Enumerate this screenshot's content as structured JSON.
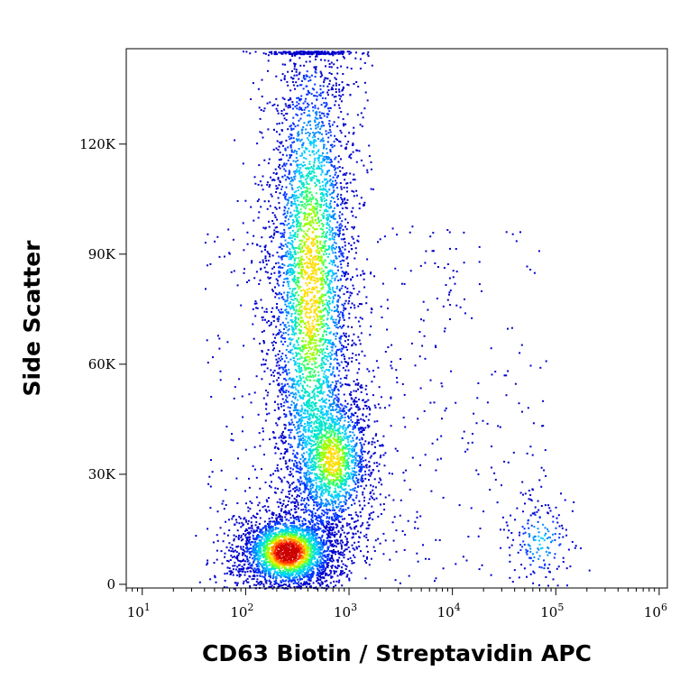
{
  "chart_data": {
    "type": "scatter",
    "plot_style": "density-colored flow cytometry dot plot",
    "xlabel": "CD63 Biotin / Streptavidin APC",
    "ylabel": "Side Scatter",
    "x_scale": "log",
    "xlim": [
      7,
      1200000
    ],
    "ylim": [
      -1000,
      146000
    ],
    "x_ticks": [
      {
        "value": 10,
        "base": "10",
        "exp": "1"
      },
      {
        "value": 100,
        "base": "10",
        "exp": "2"
      },
      {
        "value": 1000,
        "base": "10",
        "exp": "3"
      },
      {
        "value": 10000,
        "base": "10",
        "exp": "4"
      },
      {
        "value": 100000,
        "base": "10",
        "exp": "5"
      },
      {
        "value": 1000000,
        "base": "10",
        "exp": "6"
      }
    ],
    "y_ticks": [
      {
        "value": 0,
        "label": "0"
      },
      {
        "value": 30000,
        "label": "30K"
      },
      {
        "value": 60000,
        "label": "60K"
      },
      {
        "value": 90000,
        "label": "90K"
      },
      {
        "value": 120000,
        "label": "120K"
      }
    ],
    "density_colors": [
      "#0000cc",
      "#0033ff",
      "#0088ff",
      "#00ccff",
      "#00e5cc",
      "#33ff66",
      "#99ff00",
      "#ffdd00",
      "#ff8800",
      "#ff2200",
      "#cc0000"
    ],
    "populations": [
      {
        "x_center": 250,
        "y_center": 9000,
        "x_spread_log": 0.16,
        "y_spread": 3500,
        "peak_density": 1.0
      },
      {
        "x_center": 700,
        "y_center": 34000,
        "x_spread_log": 0.13,
        "y_spread": 7000,
        "peak_density": 0.55
      },
      {
        "x_center": 420,
        "y_center": 82000,
        "x_spread_log": 0.14,
        "y_spread": 26000,
        "peak_density": 0.6
      },
      {
        "x_center": 70000,
        "y_center": 12000,
        "x_spread_log": 0.12,
        "y_spread": 4500,
        "peak_density": 0.2
      }
    ]
  }
}
